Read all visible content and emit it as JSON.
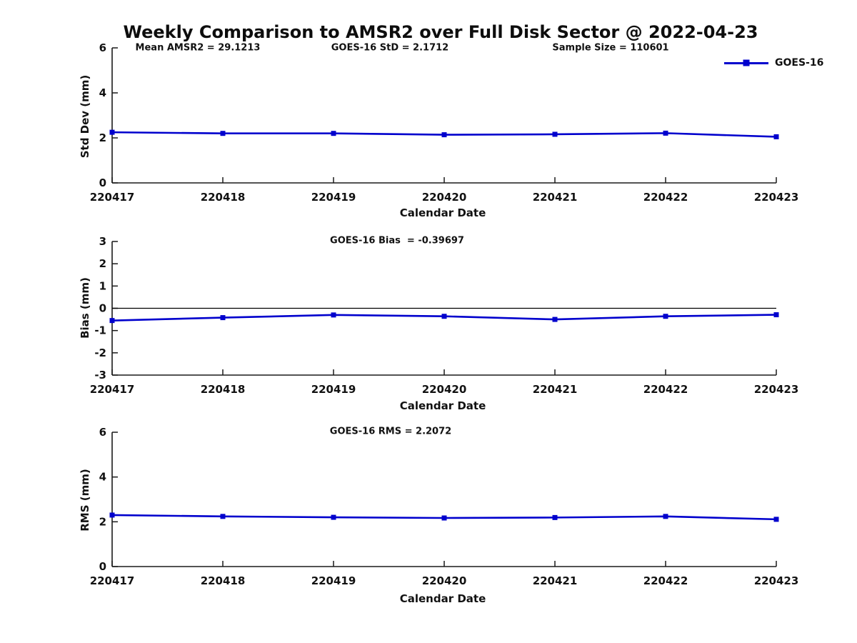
{
  "page_title": "Weekly Comparison to AMSR2 over Full Disk Sector @ 2022-04-23",
  "legend": {
    "label": "GOES-16"
  },
  "colors": {
    "series": "#0000CD",
    "axis": "#1a1a1a",
    "zero_line": "#000000",
    "text": "#111111",
    "background": "#ffffff"
  },
  "chart_data": [
    {
      "type": "line",
      "name": "std-dev",
      "annotations": [
        "Mean AMSR2 = 29.1213",
        "GOES-16 StD = 2.1712",
        "Sample Size = 110601"
      ],
      "categories": [
        "220417",
        "220418",
        "220419",
        "220420",
        "220421",
        "220422",
        "220423"
      ],
      "series": [
        {
          "name": "GOES-16",
          "values": [
            2.25,
            2.2,
            2.2,
            2.14,
            2.16,
            2.21,
            2.05
          ]
        }
      ],
      "xlabel": "Calendar Date",
      "ylabel": "Std Dev (mm)",
      "ylim": [
        0,
        6
      ],
      "yticks": [
        0,
        2,
        4,
        6
      ],
      "grid": false,
      "zero_line": false,
      "legend_position": "top-right-outside"
    },
    {
      "type": "line",
      "name": "bias",
      "annotations": [
        "GOES-16 Bias  = -0.39697"
      ],
      "categories": [
        "220417",
        "220418",
        "220419",
        "220420",
        "220421",
        "220422",
        "220423"
      ],
      "series": [
        {
          "name": "GOES-16",
          "values": [
            -0.55,
            -0.42,
            -0.3,
            -0.36,
            -0.5,
            -0.36,
            -0.29
          ]
        }
      ],
      "xlabel": "Calendar Date",
      "ylabel": "Bias (mm)",
      "ylim": [
        -3,
        3
      ],
      "yticks": [
        -3,
        -2,
        -1,
        0,
        1,
        2,
        3
      ],
      "grid": false,
      "zero_line": true,
      "legend_position": "none"
    },
    {
      "type": "line",
      "name": "rms",
      "annotations": [
        "GOES-16 RMS = 2.2072"
      ],
      "categories": [
        "220417",
        "220418",
        "220419",
        "220420",
        "220421",
        "220422",
        "220423"
      ],
      "series": [
        {
          "name": "GOES-16",
          "values": [
            2.3,
            2.24,
            2.2,
            2.17,
            2.19,
            2.24,
            2.11
          ]
        }
      ],
      "xlabel": "Calendar Date",
      "ylabel": "RMS (mm)",
      "ylim": [
        0,
        6
      ],
      "yticks": [
        0,
        2,
        4,
        6
      ],
      "grid": false,
      "zero_line": false,
      "legend_position": "none"
    }
  ]
}
